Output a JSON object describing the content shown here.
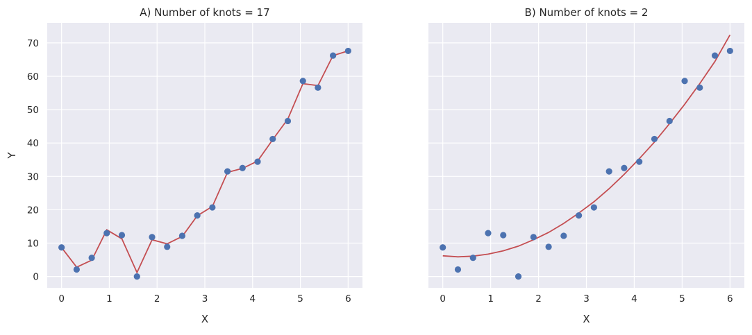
{
  "colors": {
    "background": "#eaeaf2",
    "grid": "#ffffff",
    "points": "#4c72b0",
    "fit_line": "#c44e52",
    "text": "#262626"
  },
  "chart_data": [
    {
      "type": "scatter",
      "title": "A) Number of knots = 17",
      "xlabel": "X",
      "ylabel": "Y",
      "xlim": [
        -0.3,
        6.3
      ],
      "ylim": [
        -3.4,
        76
      ],
      "xticks": [
        0,
        1,
        2,
        3,
        4,
        5,
        6
      ],
      "yticks": [
        0,
        10,
        20,
        30,
        40,
        50,
        60,
        70
      ],
      "grid": true,
      "points": {
        "x": [
          0,
          0.316,
          0.632,
          0.947,
          1.263,
          1.579,
          1.895,
          2.211,
          2.526,
          2.842,
          3.158,
          3.474,
          3.789,
          4.105,
          4.421,
          4.737,
          5.053,
          5.368,
          5.684,
          6.0
        ],
        "y": [
          8.7,
          2.1,
          5.6,
          13.0,
          12.4,
          0.0,
          11.8,
          8.9,
          12.2,
          18.3,
          20.7,
          31.5,
          32.5,
          34.4,
          41.2,
          46.6,
          58.6,
          56.6,
          66.2,
          67.6
        ]
      },
      "fit": {
        "x": [
          0,
          0.316,
          0.632,
          0.947,
          1.263,
          1.579,
          1.895,
          2.211,
          2.526,
          2.842,
          3.158,
          3.474,
          3.789,
          4.105,
          4.421,
          4.737,
          5.053,
          5.368,
          5.684,
          6.0
        ],
        "y": [
          8.7,
          2.8,
          4.9,
          14.0,
          11.3,
          1.2,
          11.0,
          9.8,
          12.0,
          18.2,
          21.0,
          31.2,
          32.4,
          34.6,
          41.0,
          47.2,
          57.8,
          57.2,
          66.2,
          67.6
        ]
      }
    },
    {
      "type": "scatter",
      "title": "B) Number of knots = 2",
      "xlabel": "X",
      "ylabel": "",
      "xlim": [
        -0.3,
        6.3
      ],
      "ylim": [
        -3.4,
        76
      ],
      "xticks": [
        0,
        1,
        2,
        3,
        4,
        5,
        6
      ],
      "yticks": [
        0,
        10,
        20,
        30,
        40,
        50,
        60,
        70
      ],
      "grid": true,
      "points": {
        "x": [
          0,
          0.316,
          0.632,
          0.947,
          1.263,
          1.579,
          1.895,
          2.211,
          2.526,
          2.842,
          3.158,
          3.474,
          3.789,
          4.105,
          4.421,
          4.737,
          5.053,
          5.368,
          5.684,
          6.0
        ],
        "y": [
          8.7,
          2.1,
          5.6,
          13.0,
          12.4,
          0.0,
          11.8,
          8.9,
          12.2,
          18.3,
          20.7,
          31.5,
          32.5,
          34.4,
          41.2,
          46.6,
          58.6,
          56.6,
          66.2,
          67.6
        ]
      },
      "fit": {
        "x": [
          0,
          0.316,
          0.632,
          0.947,
          1.263,
          1.579,
          1.895,
          2.211,
          2.526,
          2.842,
          3.158,
          3.474,
          3.789,
          4.105,
          4.421,
          4.737,
          5.053,
          5.368,
          5.684,
          6.0
        ],
        "y": [
          6.2,
          5.9,
          6.1,
          6.7,
          7.7,
          9.1,
          11.0,
          13.2,
          15.9,
          19.0,
          22.4,
          26.3,
          30.6,
          35.3,
          40.3,
          45.8,
          51.6,
          57.8,
          64.4,
          72.4
        ]
      }
    }
  ]
}
